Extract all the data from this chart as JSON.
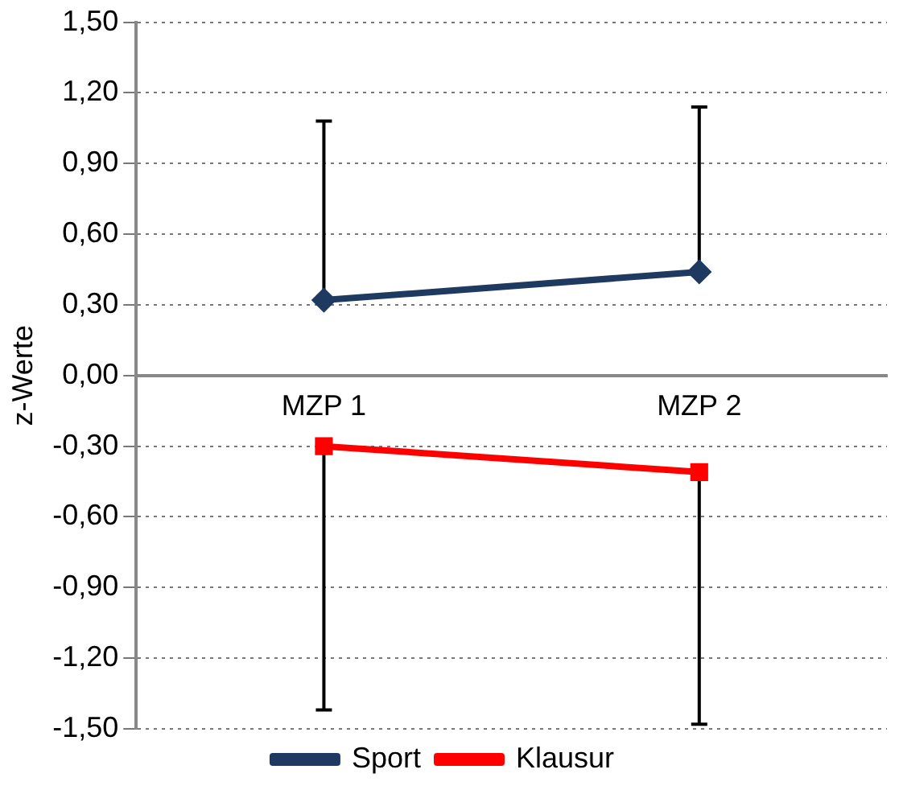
{
  "chart_data": {
    "type": "line",
    "ylabel": "z-Werte",
    "categories": [
      "MZP 1",
      "MZP 2"
    ],
    "series": [
      {
        "name": "Sport",
        "color": "#1f3a60",
        "marker": "diamond",
        "values": [
          0.32,
          0.44
        ],
        "errors": [
          [
            0.32,
            1.08
          ],
          [
            0.44,
            1.14
          ]
        ]
      },
      {
        "name": "Klausur",
        "color": "#ff0000",
        "marker": "square",
        "values": [
          -0.3,
          -0.41
        ],
        "errors": [
          [
            -1.42,
            -0.3
          ],
          [
            -1.48,
            -0.41
          ]
        ]
      }
    ],
    "ylim": [
      -1.5,
      1.5
    ],
    "yticks": [
      {
        "value": -1.5,
        "label": "-1,50"
      },
      {
        "value": -1.2,
        "label": "-1,20"
      },
      {
        "value": -0.9,
        "label": "-0,90"
      },
      {
        "value": -0.6,
        "label": "-0,60"
      },
      {
        "value": -0.3,
        "label": "-0,30"
      },
      {
        "value": 0,
        "label": "0,00"
      },
      {
        "value": 0.3,
        "label": "0,30"
      },
      {
        "value": 0.6,
        "label": "0,60"
      },
      {
        "value": 0.9,
        "label": "0,90"
      },
      {
        "value": 1.2,
        "label": "1,20"
      },
      {
        "value": 1.5,
        "label": "1,50"
      }
    ],
    "grid": "y",
    "legend": "bottom"
  }
}
